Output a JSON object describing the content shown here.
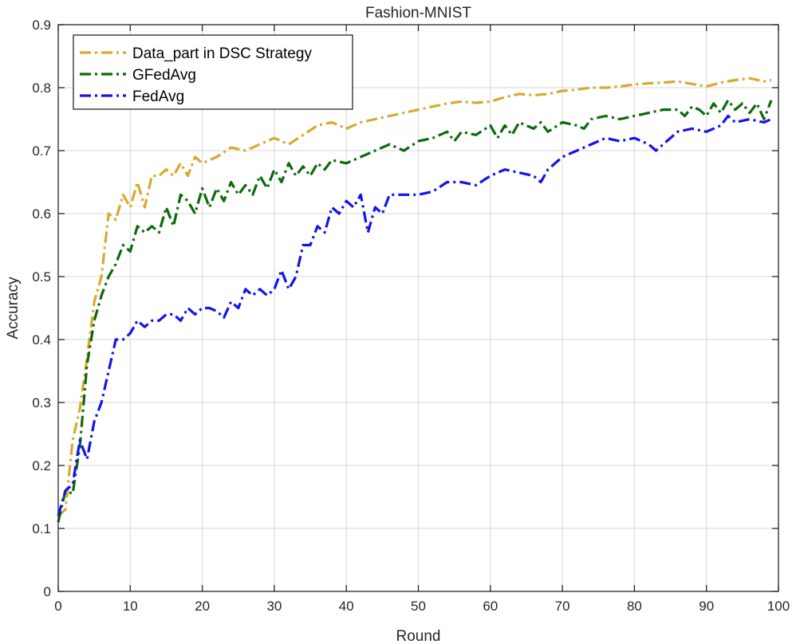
{
  "chart_data": {
    "type": "line",
    "title": "Fashion-MNIST",
    "xlabel": "Round",
    "ylabel": "Accuracy",
    "xlim": [
      0,
      100
    ],
    "ylim": [
      0,
      0.9
    ],
    "xticks": [
      0,
      10,
      20,
      30,
      40,
      50,
      60,
      70,
      80,
      90,
      100
    ],
    "yticks": [
      0,
      0.1,
      0.2,
      0.3,
      0.4,
      0.5,
      0.6,
      0.7,
      0.8,
      0.9
    ],
    "xtick_labels": [
      "0",
      "10",
      "20",
      "30",
      "40",
      "50",
      "60",
      "70",
      "80",
      "90",
      "100"
    ],
    "ytick_labels": [
      "0",
      "0.1",
      "0.2",
      "0.3",
      "0.4",
      "0.5",
      "0.6",
      "0.7",
      "0.8",
      "0.9"
    ],
    "grid": true,
    "legend_position": "top-left",
    "series": [
      {
        "name": "Data_part in DSC Strategy",
        "color": "#d9a92e",
        "line_style": "dash-dot",
        "x": [
          0,
          1,
          2,
          3,
          4,
          5,
          6,
          7,
          8,
          9,
          10,
          11,
          12,
          13,
          14,
          15,
          16,
          17,
          18,
          19,
          20,
          22,
          24,
          26,
          28,
          30,
          32,
          34,
          36,
          38,
          40,
          42,
          44,
          46,
          48,
          50,
          52,
          54,
          56,
          58,
          60,
          62,
          64,
          66,
          68,
          70,
          72,
          74,
          76,
          78,
          80,
          82,
          84,
          86,
          88,
          90,
          92,
          94,
          96,
          98,
          99
        ],
        "y": [
          0.12,
          0.13,
          0.24,
          0.29,
          0.37,
          0.46,
          0.5,
          0.6,
          0.59,
          0.63,
          0.61,
          0.65,
          0.61,
          0.66,
          0.66,
          0.67,
          0.66,
          0.68,
          0.66,
          0.69,
          0.68,
          0.69,
          0.705,
          0.7,
          0.71,
          0.72,
          0.71,
          0.725,
          0.74,
          0.745,
          0.735,
          0.745,
          0.75,
          0.755,
          0.76,
          0.765,
          0.77,
          0.775,
          0.778,
          0.776,
          0.778,
          0.785,
          0.79,
          0.788,
          0.79,
          0.795,
          0.797,
          0.8,
          0.8,
          0.802,
          0.805,
          0.807,
          0.808,
          0.81,
          0.806,
          0.802,
          0.808,
          0.812,
          0.815,
          0.81,
          0.812
        ]
      },
      {
        "name": "GFedAvg",
        "color": "#0c6a0c",
        "line_style": "dash-dot",
        "x": [
          0,
          1,
          2,
          3,
          4,
          5,
          6,
          7,
          8,
          9,
          10,
          11,
          12,
          13,
          14,
          15,
          16,
          17,
          18,
          19,
          20,
          21,
          22,
          23,
          24,
          25,
          26,
          27,
          28,
          29,
          30,
          31,
          32,
          33,
          34,
          35,
          36,
          37,
          38,
          40,
          42,
          44,
          46,
          48,
          50,
          52,
          54,
          55,
          56,
          58,
          60,
          61,
          62,
          63,
          64,
          66,
          67,
          68,
          70,
          72,
          73,
          74,
          76,
          78,
          80,
          82,
          84,
          86,
          87,
          88,
          89,
          90,
          91,
          92,
          93,
          94,
          95,
          96,
          97,
          98,
          99
        ],
        "y": [
          0.11,
          0.16,
          0.155,
          0.23,
          0.36,
          0.43,
          0.47,
          0.5,
          0.52,
          0.55,
          0.54,
          0.58,
          0.57,
          0.58,
          0.57,
          0.61,
          0.58,
          0.63,
          0.62,
          0.6,
          0.64,
          0.61,
          0.64,
          0.62,
          0.65,
          0.63,
          0.645,
          0.63,
          0.66,
          0.64,
          0.67,
          0.65,
          0.68,
          0.66,
          0.675,
          0.66,
          0.68,
          0.67,
          0.685,
          0.68,
          0.69,
          0.7,
          0.71,
          0.7,
          0.715,
          0.72,
          0.73,
          0.715,
          0.73,
          0.725,
          0.74,
          0.72,
          0.74,
          0.725,
          0.745,
          0.735,
          0.745,
          0.73,
          0.745,
          0.74,
          0.735,
          0.75,
          0.755,
          0.75,
          0.755,
          0.76,
          0.765,
          0.765,
          0.755,
          0.77,
          0.765,
          0.755,
          0.775,
          0.76,
          0.78,
          0.765,
          0.775,
          0.76,
          0.775,
          0.75,
          0.78
        ]
      },
      {
        "name": "FedAvg",
        "color": "#1414ea",
        "line_style": "dash-dot",
        "x": [
          0,
          1,
          2,
          3,
          4,
          5,
          6,
          7,
          8,
          9,
          10,
          11,
          12,
          13,
          14,
          15,
          16,
          17,
          18,
          19,
          20,
          21,
          22,
          23,
          24,
          25,
          26,
          27,
          28,
          29,
          30,
          31,
          32,
          33,
          34,
          35,
          36,
          37,
          38,
          39,
          40,
          41,
          42,
          43,
          44,
          45,
          46,
          48,
          50,
          52,
          54,
          56,
          58,
          60,
          62,
          64,
          66,
          67,
          68,
          70,
          72,
          74,
          76,
          78,
          80,
          82,
          83,
          84,
          86,
          88,
          90,
          92,
          93,
          94,
          96,
          98,
          99
        ],
        "y": [
          0.12,
          0.16,
          0.17,
          0.24,
          0.21,
          0.27,
          0.3,
          0.35,
          0.4,
          0.4,
          0.41,
          0.43,
          0.42,
          0.43,
          0.43,
          0.44,
          0.44,
          0.43,
          0.45,
          0.44,
          0.45,
          0.45,
          0.445,
          0.435,
          0.46,
          0.45,
          0.48,
          0.47,
          0.48,
          0.47,
          0.48,
          0.51,
          0.48,
          0.5,
          0.55,
          0.55,
          0.58,
          0.57,
          0.61,
          0.6,
          0.62,
          0.61,
          0.63,
          0.57,
          0.61,
          0.6,
          0.63,
          0.63,
          0.63,
          0.635,
          0.65,
          0.65,
          0.645,
          0.66,
          0.67,
          0.665,
          0.66,
          0.65,
          0.67,
          0.69,
          0.7,
          0.71,
          0.72,
          0.715,
          0.72,
          0.71,
          0.7,
          0.71,
          0.73,
          0.735,
          0.73,
          0.74,
          0.755,
          0.745,
          0.75,
          0.745,
          0.75
        ]
      }
    ]
  }
}
